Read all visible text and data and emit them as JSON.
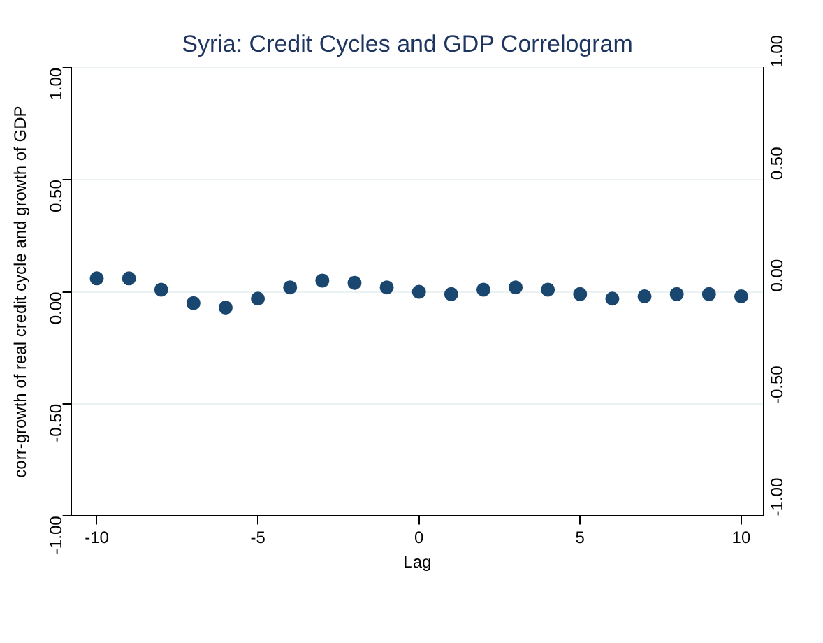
{
  "chart_data": {
    "type": "scatter",
    "title": "Syria: Credit Cycles and GDP Correlogram",
    "xlabel": "Lag",
    "ylabel": "corr-growth of real credit cycle and growth of GDP",
    "x": [
      -10,
      -9,
      -8,
      -7,
      -6,
      -5,
      -4,
      -3,
      -2,
      -1,
      0,
      1,
      2,
      3,
      4,
      5,
      6,
      7,
      8,
      9,
      10
    ],
    "series": [
      {
        "color": "#1a476f",
        "values": [
          0.06,
          0.06,
          0.01,
          -0.05,
          -0.07,
          -0.03,
          0.02,
          0.05,
          0.04,
          0.02,
          0.0,
          -0.01,
          0.01,
          0.02,
          0.01,
          -0.01,
          -0.03,
          -0.02,
          -0.01,
          -0.01,
          -0.02
        ]
      }
    ],
    "xlim": [
      -10.8,
      10.7
    ],
    "xticks": [
      -10,
      -5,
      0,
      5,
      10
    ],
    "ylim": [
      -1,
      1
    ],
    "yticks": [
      {
        "value": -1,
        "label": "-1.00"
      },
      {
        "value": -0.5,
        "label": "-0.50"
      },
      {
        "value": 0,
        "label": "0.00"
      },
      {
        "value": 0.5,
        "label": "0.50"
      },
      {
        "value": 1,
        "label": "1.00"
      }
    ],
    "y2lim": [
      -1,
      1
    ],
    "y2ticks": [
      {
        "value": -1,
        "label": "-1.00"
      },
      {
        "value": -0.5,
        "label": "-0.50"
      },
      {
        "value": 0,
        "label": "0.00"
      },
      {
        "value": 0.5,
        "label": "0.50"
      },
      {
        "value": 1,
        "label": "1.00"
      }
    ],
    "grid": "y",
    "marker": "circle",
    "legend": false
  }
}
